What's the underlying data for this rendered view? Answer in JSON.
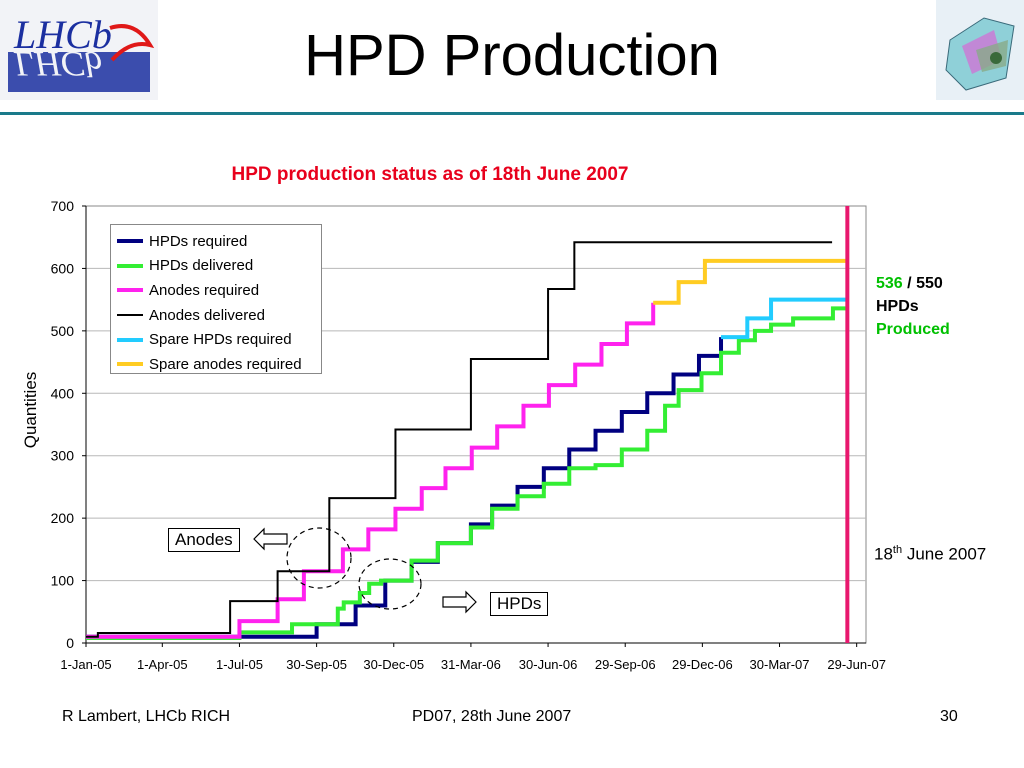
{
  "slide": {
    "title": "HPD Production",
    "footer_left": "R Lambert, LHCb RICH",
    "footer_center": "PD07, 28th June 2007",
    "page_number": "30",
    "logo_left_text": "LHCb",
    "logo_right_icon": "rich-detector-icon"
  },
  "annotations": {
    "anodes_label": "Anodes",
    "hpds_label": "HPDs",
    "count_produced": "536",
    "separator": "/",
    "count_total": "550",
    "unit": "HPDs",
    "status": "Produced",
    "marker_day": "18",
    "marker_sup": "th",
    "marker_rest": " June 2007"
  },
  "chart_data": {
    "type": "line",
    "title": "HPD production status as of 18th June 2007",
    "xlabel": "",
    "ylabel": "Quantities",
    "ylim": [
      0,
      700
    ],
    "yticks": [
      0,
      100,
      200,
      300,
      400,
      500,
      600,
      700
    ],
    "xticks": [
      "1-Jan-05",
      "1-Apr-05",
      "1-Jul-05",
      "30-Sep-05",
      "30-Dec-05",
      "31-Mar-06",
      "30-Jun-06",
      "29-Sep-06",
      "29-Dec-06",
      "30-Mar-07",
      "29-Jun-07"
    ],
    "xlim": [
      "2005-01-01",
      "2007-07-10"
    ],
    "grid": true,
    "legend_position": "top-left",
    "marker_line": {
      "date": "2007-06-18",
      "color": "#e8176e"
    },
    "series": [
      {
        "name": "HPDs required",
        "color": "#000080",
        "width": 4,
        "step": true,
        "points": [
          [
            "2005-01-01",
            10
          ],
          [
            "2005-09-30",
            30
          ],
          [
            "2005-11-15",
            60
          ],
          [
            "2005-12-20",
            100
          ],
          [
            "2006-01-20",
            130
          ],
          [
            "2006-02-20",
            160
          ],
          [
            "2006-03-31",
            190
          ],
          [
            "2006-04-25",
            220
          ],
          [
            "2006-05-25",
            250
          ],
          [
            "2006-06-25",
            280
          ],
          [
            "2006-07-25",
            310
          ],
          [
            "2006-08-25",
            340
          ],
          [
            "2006-09-25",
            370
          ],
          [
            "2006-10-25",
            400
          ],
          [
            "2006-11-25",
            430
          ],
          [
            "2006-12-25",
            460
          ],
          [
            "2007-01-20",
            490
          ],
          [
            "2007-01-20",
            490
          ]
        ]
      },
      {
        "name": "HPDs delivered",
        "color": "#33ee33",
        "width": 4,
        "step": true,
        "points": [
          [
            "2005-01-01",
            8
          ],
          [
            "2005-07-01",
            17
          ],
          [
            "2005-09-01",
            30
          ],
          [
            "2005-10-25",
            55
          ],
          [
            "2005-11-01",
            65
          ],
          [
            "2005-11-20",
            80
          ],
          [
            "2005-12-01",
            95
          ],
          [
            "2005-12-15",
            100
          ],
          [
            "2006-01-20",
            132
          ],
          [
            "2006-02-20",
            160
          ],
          [
            "2006-03-31",
            185
          ],
          [
            "2006-04-25",
            215
          ],
          [
            "2006-05-25",
            235
          ],
          [
            "2006-06-25",
            255
          ],
          [
            "2006-07-25",
            280
          ],
          [
            "2006-08-25",
            285
          ],
          [
            "2006-09-25",
            310
          ],
          [
            "2006-10-25",
            340
          ],
          [
            "2006-11-15",
            380
          ],
          [
            "2006-12-01",
            405
          ],
          [
            "2006-12-28",
            432
          ],
          [
            "2007-01-20",
            465
          ],
          [
            "2007-02-10",
            485
          ],
          [
            "2007-03-01",
            500
          ],
          [
            "2007-03-20",
            510
          ],
          [
            "2007-04-15",
            520
          ],
          [
            "2007-06-01",
            536
          ],
          [
            "2007-06-18",
            536
          ]
        ]
      },
      {
        "name": "Anodes required",
        "color": "#ff22ee",
        "width": 4,
        "step": true,
        "points": [
          [
            "2005-01-01",
            10
          ],
          [
            "2005-07-01",
            35
          ],
          [
            "2005-08-15",
            70
          ],
          [
            "2005-09-15",
            115
          ],
          [
            "2005-10-31",
            150
          ],
          [
            "2005-11-30",
            182
          ],
          [
            "2006-01-01",
            215
          ],
          [
            "2006-02-01",
            248
          ],
          [
            "2006-03-01",
            280
          ],
          [
            "2006-04-01",
            313
          ],
          [
            "2006-05-01",
            347
          ],
          [
            "2006-06-01",
            380
          ],
          [
            "2006-07-01",
            413
          ],
          [
            "2006-08-01",
            446
          ],
          [
            "2006-09-01",
            479
          ],
          [
            "2006-10-01",
            512
          ],
          [
            "2006-11-01",
            545
          ]
        ]
      },
      {
        "name": "Anodes delivered",
        "color": "#000000",
        "width": 2,
        "step": true,
        "points": [
          [
            "2005-01-01",
            10
          ],
          [
            "2005-01-15",
            16
          ],
          [
            "2005-06-20",
            67
          ],
          [
            "2005-08-15",
            115
          ],
          [
            "2005-10-15",
            232
          ],
          [
            "2006-01-01",
            342
          ],
          [
            "2006-03-31",
            455
          ],
          [
            "2006-06-30",
            567
          ],
          [
            "2006-07-31",
            642
          ],
          [
            "2007-05-31",
            642
          ]
        ]
      },
      {
        "name": "Spare HPDs required",
        "color": "#22ccff",
        "width": 4,
        "step": true,
        "points": [
          [
            "2007-01-20",
            490
          ],
          [
            "2007-02-20",
            520
          ],
          [
            "2007-03-20",
            550
          ],
          [
            "2007-06-18",
            550
          ]
        ]
      },
      {
        "name": "Spare anodes required",
        "color": "#ffcc22",
        "width": 4,
        "step": true,
        "points": [
          [
            "2006-11-01",
            545
          ],
          [
            "2006-12-01",
            578
          ],
          [
            "2007-01-01",
            612
          ],
          [
            "2007-06-18",
            612
          ]
        ]
      }
    ]
  }
}
